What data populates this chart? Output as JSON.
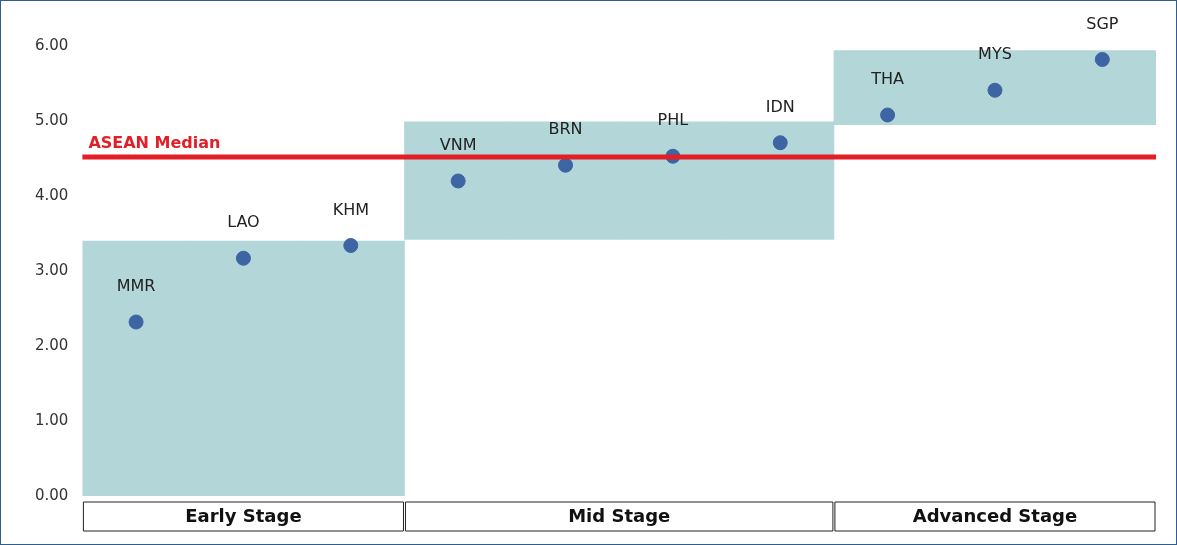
{
  "chart_data": {
    "type": "scatter",
    "categories": [
      "MMR",
      "LAO",
      "KHM",
      "VNM",
      "BRN",
      "PHL",
      "IDN",
      "THA",
      "MYS",
      "SGP"
    ],
    "series": [
      {
        "type": "bar",
        "color": "#b3d7d9",
        "base": [
          0,
          0,
          0,
          3.42,
          3.42,
          3.42,
          3.42,
          4.95,
          4.95,
          4.95
        ],
        "values": [
          3.4,
          3.4,
          3.4,
          1.57,
          1.57,
          1.57,
          1.57,
          0.99,
          0.99,
          0.99
        ]
      },
      {
        "color": "#3d65a3",
        "values": [
          2.32,
          3.17,
          3.34,
          4.2,
          4.41,
          4.53,
          4.71,
          5.08,
          5.41,
          5.82
        ]
      }
    ],
    "ylim": [
      0,
      6
    ],
    "yticks": [
      {
        "value": 0,
        "label": "0.00"
      },
      {
        "value": 1,
        "label": "1.00"
      },
      {
        "value": 2,
        "label": "2.00"
      },
      {
        "value": 3,
        "label": "3.00"
      },
      {
        "value": 4,
        "label": "4.00"
      },
      {
        "value": 5,
        "label": "5.00"
      },
      {
        "value": 6,
        "label": "6.00"
      }
    ],
    "ref_lines": [
      {
        "axis": "y",
        "value": 4.52,
        "label": "ASEAN Median",
        "color": "#e21f26"
      }
    ],
    "annotations": [
      "Early Stage",
      "Mid Stage",
      "Advanced Stage"
    ],
    "marker": "circle",
    "grid": false,
    "legend": false
  }
}
